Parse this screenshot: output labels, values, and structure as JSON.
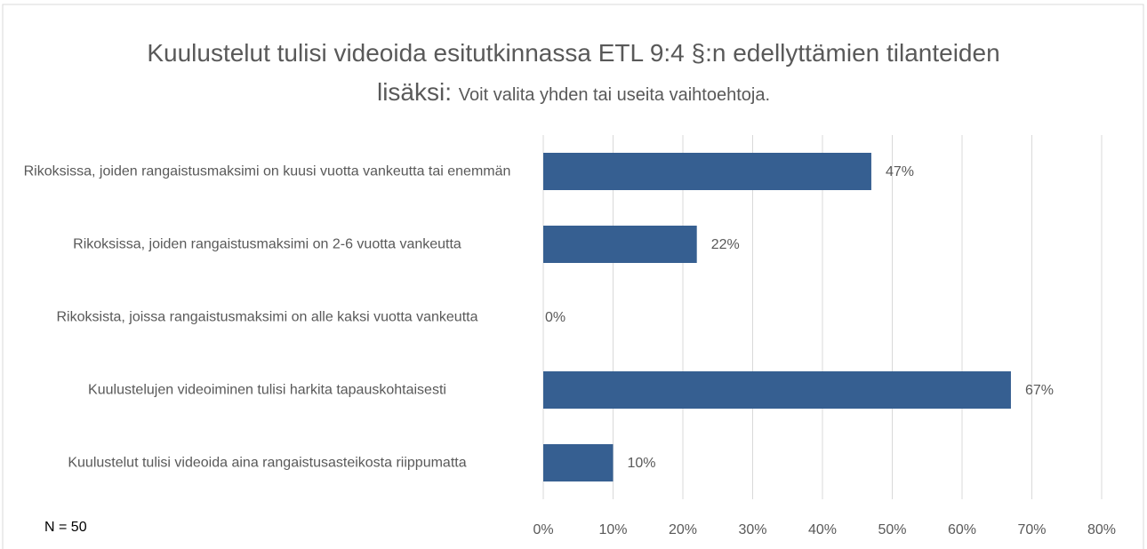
{
  "chart_data": {
    "type": "bar",
    "orientation": "horizontal",
    "title": "Kuulustelut tulisi videoida esitutkinnassa ETL 9:4 §:n edellyttämien tilanteiden lisäksi:",
    "subtitle": "Voit valita yhden tai useita vaihtoehtoja.",
    "note": "N = 50",
    "categories": [
      "Rikoksissa, joiden rangaistusmaksimi on kuusi vuotta vankeutta tai enemmän",
      "Rikoksissa, joiden rangaistusmaksimi on 2-6 vuotta vankeutta",
      "Rikoksista, joissa rangaistusmaksimi on alle kaksi vuotta vankeutta",
      "Kuulustelujen videoiminen tulisi harkita tapauskohtaisesti",
      "Kuulustelut tulisi videoida aina rangaistusasteikosta riippumatta"
    ],
    "values": [
      47,
      22,
      0,
      67,
      10
    ],
    "value_labels": [
      "47%",
      "22%",
      "0%",
      "67%",
      "10%"
    ],
    "color": "#365f91",
    "xlim": [
      0,
      80
    ],
    "xticks": [
      {
        "value": 0,
        "label": "0%"
      },
      {
        "value": 10,
        "label": "10%"
      },
      {
        "value": 20,
        "label": "20%"
      },
      {
        "value": 30,
        "label": "30%"
      },
      {
        "value": 40,
        "label": "40%"
      },
      {
        "value": 50,
        "label": "50%"
      },
      {
        "value": 60,
        "label": "60%"
      },
      {
        "value": 70,
        "label": "70%"
      },
      {
        "value": 80,
        "label": "80%"
      }
    ],
    "grid": true
  }
}
